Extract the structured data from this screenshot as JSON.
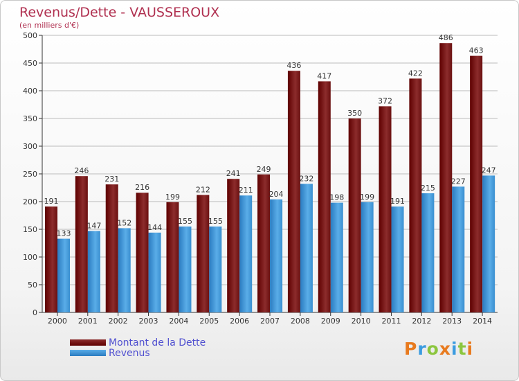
{
  "title": "Revenus/Dette - VAUSSEROUX",
  "subtitle": "(en milliers d'€)",
  "colors": {
    "dette_dark": "#5e0000",
    "dette_light": "#8c2c2c",
    "revenus_dark": "#2a7bc0",
    "revenus_light": "#5aade8",
    "grid": "#bbbbbb",
    "title": "#b03050",
    "legend_text": "#5050d0"
  },
  "chart_data": {
    "type": "bar",
    "title": "Revenus/Dette - VAUSSEROUX",
    "subtitle": "(en milliers d'€)",
    "xlabel": "",
    "ylabel": "",
    "ylim": [
      0,
      500
    ],
    "yticks": [
      0,
      50,
      100,
      150,
      200,
      250,
      300,
      350,
      400,
      450,
      500
    ],
    "grid": true,
    "legend_position": "bottom-left",
    "categories": [
      "2000",
      "2001",
      "2002",
      "2003",
      "2004",
      "2005",
      "2006",
      "2007",
      "2008",
      "2009",
      "2010",
      "2011",
      "2012",
      "2013",
      "2014"
    ],
    "series": [
      {
        "name": "Montant de la Dette",
        "values": [
          191,
          246,
          231,
          216,
          199,
          212,
          241,
          249,
          436,
          417,
          350,
          372,
          422,
          486,
          463
        ]
      },
      {
        "name": "Revenus",
        "values": [
          133,
          147,
          152,
          144,
          155,
          155,
          211,
          204,
          232,
          198,
          199,
          191,
          215,
          227,
          247
        ]
      }
    ]
  },
  "legend": {
    "items": [
      {
        "label": "Montant de la Dette"
      },
      {
        "label": "Revenus"
      }
    ]
  },
  "logo": {
    "letters": [
      "P",
      "r",
      "o",
      "x",
      "i",
      "t",
      "i"
    ],
    "letter_colors": [
      "#e87a1e",
      "#3a9be0",
      "#8cc63f",
      "#e87a1e",
      "#3a9be0",
      "#8cc63f",
      "#e87a1e"
    ]
  }
}
